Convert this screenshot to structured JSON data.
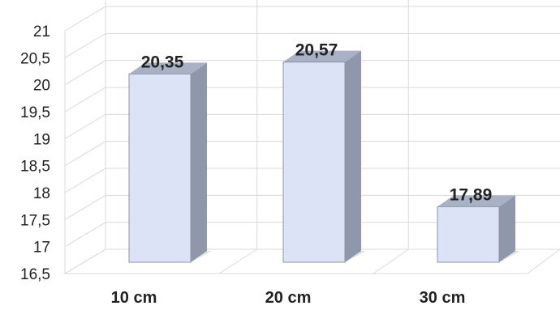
{
  "chart_data": {
    "type": "bar",
    "categories": [
      "10 cm",
      "20 cm",
      "30 cm"
    ],
    "values": [
      20.35,
      20.57,
      17.89
    ],
    "value_labels": [
      "20,35",
      "20,57",
      "17,89"
    ],
    "y_ticks": [
      "16,5",
      "17",
      "17,5",
      "18",
      "18,5",
      "19",
      "19,5",
      "20",
      "20,5",
      "21"
    ],
    "ylim": [
      16.5,
      21
    ],
    "grid": true,
    "legend": "none",
    "style": "3d-column",
    "colors": {
      "bar_front": "#dde3f7",
      "bar_side": "#8e97ab",
      "bar_top": "#a9b1c4",
      "grid": "#d9d9d9",
      "text": "#222222"
    }
  }
}
